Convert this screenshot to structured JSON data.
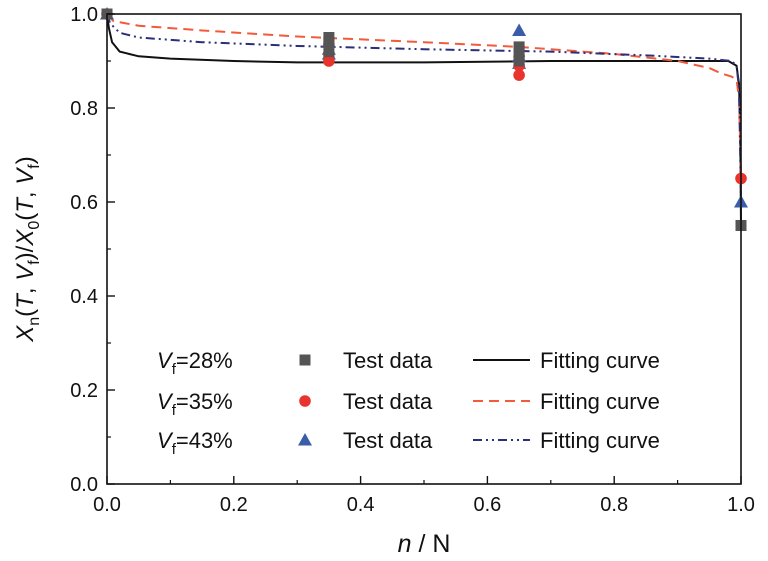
{
  "chart_data": {
    "type": "scatter",
    "xlabel": {
      "italic": "n",
      "rest": " / N"
    },
    "ylabel": {
      "parts": [
        {
          "t": "X",
          "i": true
        },
        {
          "t": "n",
          "sub": true
        },
        {
          "t": "("
        },
        {
          "t": "T",
          "i": true
        },
        {
          "t": ", "
        },
        {
          "t": "V",
          "i": true
        },
        {
          "t": "f",
          "sub": true
        },
        {
          "t": ")/"
        },
        {
          "t": "X",
          "i": true
        },
        {
          "t": "0",
          "sub": true
        },
        {
          "t": "("
        },
        {
          "t": "T",
          "i": true
        },
        {
          "t": ", "
        },
        {
          "t": "V",
          "i": true
        },
        {
          "t": "f",
          "sub": true
        },
        {
          "t": ")"
        }
      ]
    },
    "xlim": [
      0.0,
      1.0
    ],
    "ylim": [
      0.0,
      1.0
    ],
    "x_ticks": [
      "0.0",
      "0.2",
      "0.4",
      "0.6",
      "0.8",
      "1.0"
    ],
    "y_ticks": [
      "0.0",
      "0.2",
      "0.4",
      "0.6",
      "0.8",
      "1.0"
    ],
    "grid": false,
    "legend_position": "bottom-left",
    "legend_test_label": "Test data",
    "legend_fit_label": "Fitting curve",
    "series": [
      {
        "vf_label": "=28%",
        "color": "#555555",
        "curve_color": "#111111",
        "marker": "square",
        "line_style": "solid",
        "test_points": [
          {
            "x": 0.0,
            "y": 1.0
          },
          {
            "x": 0.35,
            "y": 0.95
          },
          {
            "x": 0.35,
            "y": 0.94
          },
          {
            "x": 0.35,
            "y": 0.92
          },
          {
            "x": 0.65,
            "y": 0.93
          },
          {
            "x": 0.65,
            "y": 0.92
          },
          {
            "x": 0.65,
            "y": 0.9
          },
          {
            "x": 1.0,
            "y": 0.55
          }
        ],
        "fit_curve": [
          {
            "x": 0.0,
            "y": 1.0
          },
          {
            "x": 0.003,
            "y": 0.97
          },
          {
            "x": 0.008,
            "y": 0.94
          },
          {
            "x": 0.02,
            "y": 0.92
          },
          {
            "x": 0.05,
            "y": 0.91
          },
          {
            "x": 0.1,
            "y": 0.905
          },
          {
            "x": 0.2,
            "y": 0.9
          },
          {
            "x": 0.3,
            "y": 0.897
          },
          {
            "x": 0.5,
            "y": 0.897
          },
          {
            "x": 0.7,
            "y": 0.9
          },
          {
            "x": 0.9,
            "y": 0.9
          },
          {
            "x": 0.98,
            "y": 0.9
          },
          {
            "x": 0.993,
            "y": 0.89
          },
          {
            "x": 0.997,
            "y": 0.85
          },
          {
            "x": 0.999,
            "y": 0.72
          },
          {
            "x": 1.0,
            "y": 0.55
          }
        ]
      },
      {
        "vf_label": "=35%",
        "color": "#e8342c",
        "curve_color": "#f25a3c",
        "marker": "circle",
        "line_style": "dash",
        "test_points": [
          {
            "x": 0.0,
            "y": 1.0
          },
          {
            "x": 0.35,
            "y": 0.935
          },
          {
            "x": 0.35,
            "y": 0.915
          },
          {
            "x": 0.35,
            "y": 0.9
          },
          {
            "x": 0.65,
            "y": 0.91
          },
          {
            "x": 0.65,
            "y": 0.89
          },
          {
            "x": 0.65,
            "y": 0.87
          },
          {
            "x": 1.0,
            "y": 0.65
          }
        ],
        "fit_curve": [
          {
            "x": 0.0,
            "y": 1.0
          },
          {
            "x": 0.01,
            "y": 0.985
          },
          {
            "x": 0.05,
            "y": 0.975
          },
          {
            "x": 0.15,
            "y": 0.965
          },
          {
            "x": 0.3,
            "y": 0.952
          },
          {
            "x": 0.5,
            "y": 0.94
          },
          {
            "x": 0.65,
            "y": 0.93
          },
          {
            "x": 0.8,
            "y": 0.915
          },
          {
            "x": 0.9,
            "y": 0.9
          },
          {
            "x": 0.95,
            "y": 0.885
          },
          {
            "x": 0.97,
            "y": 0.873
          },
          {
            "x": 0.985,
            "y": 0.867
          },
          {
            "x": 0.993,
            "y": 0.86
          },
          {
            "x": 0.997,
            "y": 0.82
          },
          {
            "x": 1.0,
            "y": 0.65
          }
        ]
      },
      {
        "vf_label": "=43%",
        "color": "#3b5ca8",
        "curve_color": "#2a2f7a",
        "marker": "triangle",
        "line_style": "dashdotdot",
        "test_points": [
          {
            "x": 0.0,
            "y": 1.0
          },
          {
            "x": 0.35,
            "y": 0.94
          },
          {
            "x": 0.35,
            "y": 0.925
          },
          {
            "x": 0.35,
            "y": 0.915
          },
          {
            "x": 0.65,
            "y": 0.965
          },
          {
            "x": 0.65,
            "y": 0.91
          },
          {
            "x": 0.65,
            "y": 0.895
          },
          {
            "x": 1.0,
            "y": 0.6
          }
        ],
        "fit_curve": [
          {
            "x": 0.0,
            "y": 1.0
          },
          {
            "x": 0.005,
            "y": 0.98
          },
          {
            "x": 0.02,
            "y": 0.96
          },
          {
            "x": 0.05,
            "y": 0.95
          },
          {
            "x": 0.15,
            "y": 0.94
          },
          {
            "x": 0.3,
            "y": 0.932
          },
          {
            "x": 0.5,
            "y": 0.925
          },
          {
            "x": 0.7,
            "y": 0.92
          },
          {
            "x": 0.85,
            "y": 0.912
          },
          {
            "x": 0.95,
            "y": 0.905
          },
          {
            "x": 0.985,
            "y": 0.9
          },
          {
            "x": 0.993,
            "y": 0.89
          },
          {
            "x": 0.997,
            "y": 0.84
          },
          {
            "x": 1.0,
            "y": 0.6
          }
        ]
      }
    ]
  }
}
